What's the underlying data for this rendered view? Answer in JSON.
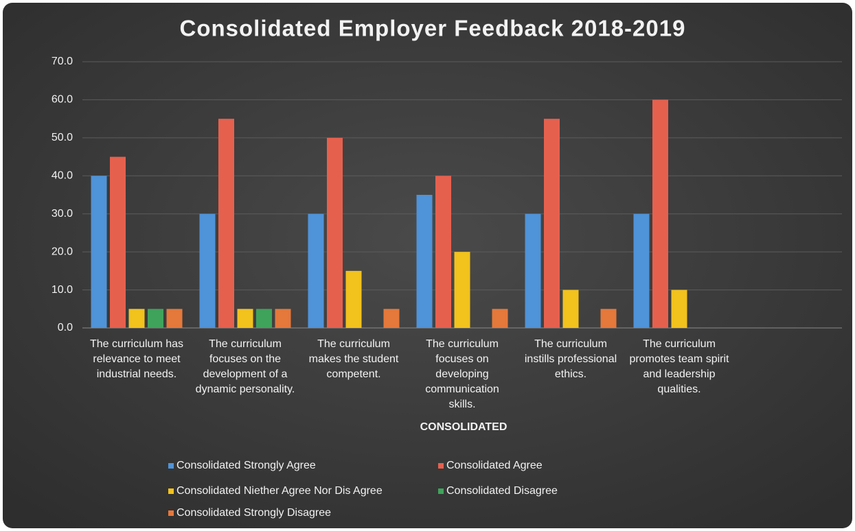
{
  "chart_data": {
    "type": "bar",
    "title": "Consolidated Employer Feedback 2018-2019",
    "x_label": "CONSOLIDATED",
    "categories": [
      "The curriculum has relevance to meet industrial needs.",
      "The curriculum focuses on the development of a dynamic personality.",
      "The curriculum makes the student competent.",
      "The curriculum focuses on developing communication skills.",
      "The curriculum instills professional ethics.",
      "The curriculum promotes team spirit and leadership qualities.",
      null
    ],
    "series": [
      {
        "name": "Consolidated Strongly Agree",
        "color": "#4f93d8",
        "values": [
          40,
          30,
          30,
          35,
          30,
          30,
          null
        ]
      },
      {
        "name": "Consolidated Agree",
        "color": "#e6604e",
        "values": [
          45,
          55,
          50,
          40,
          55,
          60,
          null
        ]
      },
      {
        "name": "Consolidated Niether Agree Nor Dis Agree",
        "color": "#f2c21d",
        "values": [
          5,
          5,
          15,
          20,
          10,
          10,
          null
        ]
      },
      {
        "name": "Consolidated Disagree",
        "color": "#3fa35b",
        "values": [
          5,
          5,
          0,
          0,
          0,
          0,
          null
        ]
      },
      {
        "name": "Consolidated Strongly Disagree",
        "color": "#e5783b",
        "values": [
          5,
          5,
          5,
          5,
          5,
          0,
          null
        ]
      }
    ],
    "ylim": [
      0,
      70
    ],
    "yticks": [
      {
        "value": 0,
        "label": "0.0"
      },
      {
        "value": 10,
        "label": "10.0"
      },
      {
        "value": 20,
        "label": "20.0"
      },
      {
        "value": 30,
        "label": "30.0"
      },
      {
        "value": 40,
        "label": "40.0"
      },
      {
        "value": 50,
        "label": "50.0"
      },
      {
        "value": 60,
        "label": "60.0"
      },
      {
        "value": 70,
        "label": "70.0"
      }
    ],
    "grid": true,
    "legend": "bottom"
  }
}
